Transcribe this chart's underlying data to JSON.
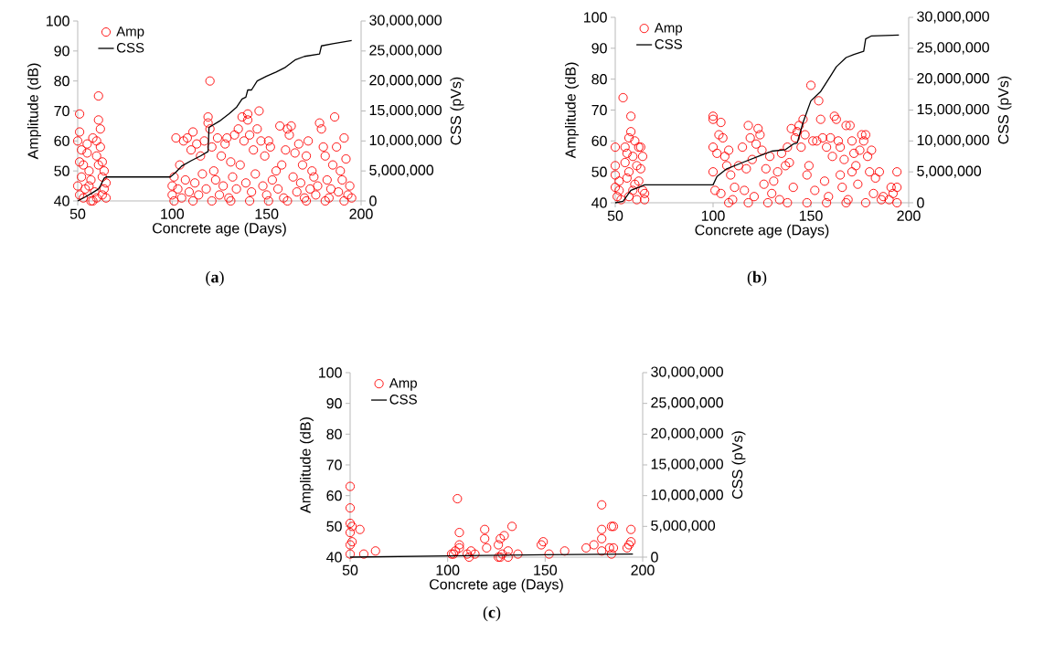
{
  "chart_data": [
    {
      "type": "scatter",
      "xlabel": "Concrete age (Days)",
      "ylabel": "Amplitude  (dB)",
      "y2label": "CSS (pVs)",
      "legend": "top left",
      "annotations": [
        "(**a**)"
      ],
      "xlim": [
        50,
        200
      ],
      "xticks": [
        50,
        100,
        150,
        200
      ],
      "ylim": [
        40,
        100
      ],
      "yticks": [
        40,
        50,
        60,
        70,
        80,
        90,
        100
      ],
      "y2lim": [
        0,
        30000000
      ],
      "y2ticks": [
        0,
        {
          "value": 5000000,
          "label": "5,000,000"
        },
        {
          "value": 10000000,
          "label": "10,000,000"
        },
        {
          "value": 15000000,
          "label": "15,000,000"
        },
        {
          "value": 20000000,
          "label": "20,000,000"
        },
        {
          "value": 25000000,
          "label": "25,000,000"
        },
        {
          "value": 30000000,
          "label": "30,000,000"
        }
      ],
      "series": [
        {
          "name": "Amp",
          "color": "#ff0000",
          "marker": "circle",
          "x": [
            51,
            51,
            50,
            51,
            52,
            53,
            50,
            51,
            52,
            54,
            55,
            55,
            56,
            57,
            58,
            59,
            60,
            60,
            61,
            61,
            62,
            62,
            63,
            63,
            64,
            64,
            65,
            53,
            57,
            60,
            63,
            65,
            58,
            56,
            61,
            100,
            100,
            101,
            102,
            104,
            106,
            108,
            110,
            111,
            113,
            115,
            117,
            119,
            119,
            120,
            120,
            121,
            122,
            124,
            126,
            128,
            129,
            131,
            133,
            135,
            137,
            138,
            140,
            140,
            141,
            143,
            145,
            146,
            147,
            149,
            151,
            152,
            155,
            157,
            160,
            161,
            162,
            163,
            165,
            167,
            169,
            171,
            172,
            175,
            178,
            179,
            180,
            181,
            185,
            186,
            187,
            189,
            191,
            192,
            194,
            195,
            103,
            105,
            107,
            109,
            112,
            114,
            116,
            118,
            123,
            125,
            127,
            130,
            132,
            134,
            136,
            139,
            142,
            144,
            148,
            150,
            153,
            156,
            158,
            159,
            164,
            166,
            168,
            170,
            173,
            174,
            176,
            177,
            182,
            183,
            184,
            188,
            190,
            193,
            111,
            121,
            131,
            141,
            151,
            161,
            171,
            181,
            191,
            101
          ],
          "values": [
            69,
            63,
            60,
            53,
            57,
            52,
            45,
            42,
            48,
            44,
            59,
            56,
            50,
            47,
            61,
            43,
            60,
            55,
            75,
            67,
            64,
            58,
            53,
            48,
            50,
            44,
            46,
            41,
            40,
            41,
            42,
            41,
            40,
            45,
            52,
            42,
            45,
            48,
            61,
            52,
            60,
            61,
            57,
            63,
            59,
            55,
            60,
            68,
            66,
            80,
            64,
            58,
            50,
            61,
            55,
            59,
            61,
            53,
            62,
            64,
            68,
            60,
            69,
            67,
            62,
            57,
            64,
            70,
            60,
            55,
            60,
            58,
            50,
            65,
            57,
            64,
            62,
            65,
            56,
            59,
            52,
            55,
            60,
            48,
            66,
            64,
            58,
            55,
            52,
            68,
            58,
            50,
            61,
            54,
            45,
            41,
            44,
            41,
            47,
            43,
            46,
            42,
            49,
            44,
            47,
            42,
            45,
            41,
            48,
            44,
            52,
            46,
            43,
            49,
            45,
            42,
            47,
            44,
            52,
            41,
            48,
            43,
            46,
            41,
            44,
            50,
            42,
            45,
            47,
            41,
            44,
            43,
            47,
            42,
            40,
            40,
            40,
            40,
            40,
            40,
            40,
            40,
            40,
            40
          ]
        },
        {
          "name": "CSS",
          "type": "line",
          "axis": "y2",
          "color": "#000000",
          "marker": "none",
          "x": [
            50,
            53,
            57,
            61,
            62,
            64,
            65,
            99,
            102,
            105,
            110,
            115,
            119,
            119.5,
            125,
            130,
            134,
            137,
            139,
            140,
            142,
            145,
            150,
            155,
            160,
            165,
            170,
            178,
            179,
            185,
            195
          ],
          "values": [
            0,
            500000,
            1200000,
            2000000,
            2500000,
            3800000,
            4000000,
            4000000,
            4800000,
            5800000,
            6700000,
            7500000,
            8250000,
            12250000,
            13300000,
            14500000,
            15600000,
            17000000,
            17300000,
            18500000,
            18500000,
            20000000,
            20800000,
            21500000,
            22300000,
            23500000,
            24100000,
            24500000,
            25850000,
            26200000,
            26750000
          ]
        }
      ]
    },
    {
      "type": "scatter",
      "xlabel": "Concrete age (Days)",
      "ylabel": "Amplitude  (dB)",
      "y2label": "CSS (pVs)",
      "legend": "top left",
      "annotations": [
        "(**b**)"
      ],
      "xlim": [
        50,
        200
      ],
      "xticks": [
        50,
        100,
        150,
        200
      ],
      "ylim": [
        40,
        100
      ],
      "yticks": [
        40,
        50,
        60,
        70,
        80,
        90,
        100
      ],
      "y2lim": [
        0,
        30000000
      ],
      "y2ticks": [
        0,
        {
          "value": 5000000,
          "label": "5,000,000"
        },
        {
          "value": 10000000,
          "label": "10,000,000"
        },
        {
          "value": 15000000,
          "label": "15,000,000"
        },
        {
          "value": 20000000,
          "label": "20,000,000"
        },
        {
          "value": 25000000,
          "label": "25,000,000"
        },
        {
          "value": 30000000,
          "label": "30,000,000"
        }
      ],
      "series": [
        {
          "name": "Amp",
          "color": "#ff0000",
          "marker": "circle",
          "x": [
            50,
            50,
            50,
            50,
            51,
            52,
            54,
            55,
            55,
            56,
            56,
            57,
            57,
            58,
            58,
            59,
            60,
            60,
            61,
            62,
            62,
            63,
            63,
            64,
            64,
            65,
            53,
            57,
            61,
            65,
            59,
            52,
            100,
            100,
            100,
            100,
            101,
            102,
            103,
            104,
            105,
            106,
            107,
            108,
            109,
            111,
            113,
            115,
            117,
            118,
            119,
            120,
            122,
            123,
            124,
            125,
            127,
            129,
            131,
            133,
            135,
            137,
            138,
            139,
            140,
            142,
            143,
            144,
            145,
            146,
            147,
            150,
            151,
            153,
            154,
            155,
            156,
            158,
            160,
            161,
            162,
            163,
            164,
            165,
            167,
            168,
            170,
            171,
            172,
            173,
            175,
            176,
            177,
            178,
            179,
            180,
            181,
            183,
            185,
            187,
            190,
            191,
            192,
            194,
            194,
            194,
            104,
            110,
            116,
            121,
            126,
            130,
            134,
            141,
            148,
            152,
            157,
            159,
            166,
            169,
            174,
            182,
            186,
            108,
            118,
            128,
            138,
            148,
            158,
            168,
            178,
            149,
            165,
            171
          ],
          "values": [
            58,
            52,
            49,
            45,
            42,
            44,
            74,
            58,
            53,
            48,
            56,
            61,
            50,
            68,
            63,
            55,
            46,
            60,
            52,
            58,
            47,
            58,
            51,
            44,
            55,
            43,
            41,
            42,
            41,
            41,
            44,
            47,
            68,
            67,
            58,
            50,
            44,
            56,
            62,
            66,
            61,
            55,
            52,
            57,
            49,
            45,
            52,
            58,
            51,
            65,
            61,
            54,
            59,
            64,
            62,
            57,
            51,
            55,
            47,
            50,
            56,
            52,
            58,
            53,
            64,
            61,
            63,
            65,
            58,
            67,
            62,
            78,
            60,
            60,
            73,
            67,
            61,
            58,
            61,
            55,
            68,
            67,
            60,
            58,
            54,
            65,
            65,
            60,
            56,
            52,
            57,
            62,
            60,
            62,
            55,
            50,
            57,
            48,
            50,
            42,
            41,
            45,
            43,
            50,
            45,
            40,
            43,
            41,
            44,
            42,
            46,
            43,
            41,
            45,
            49,
            44,
            47,
            42,
            45,
            41,
            46,
            43,
            41,
            40,
            40,
            40,
            40,
            40,
            40,
            40,
            40,
            52,
            49,
            50
          ]
        },
        {
          "name": "CSS",
          "type": "line",
          "axis": "y2",
          "color": "#000000",
          "marker": "none",
          "x": [
            50,
            54,
            58,
            62,
            65,
            100,
            102,
            107,
            115,
            125,
            130,
            137,
            141,
            143,
            146,
            150,
            155,
            160,
            163,
            168,
            172,
            177,
            178,
            181,
            195
          ],
          "values": [
            0,
            250000,
            2000000,
            2500000,
            2900000,
            2900000,
            4250000,
            5500000,
            6500000,
            7750000,
            8350000,
            8600000,
            9500000,
            9650000,
            13000000,
            16500000,
            18000000,
            20500000,
            22000000,
            23500000,
            24000000,
            24500000,
            26500000,
            27000000,
            27150000
          ]
        }
      ]
    },
    {
      "type": "scatter",
      "xlabel": "Concrete age (Days)",
      "ylabel": "Amplitude (dB)",
      "y2label": "CSS (pVs)",
      "legend": "top left",
      "annotations": [
        "(**c**)"
      ],
      "xlim": [
        50,
        200
      ],
      "xticks": [
        50,
        100,
        150,
        200
      ],
      "ylim": [
        40,
        100
      ],
      "yticks": [
        40,
        50,
        60,
        70,
        80,
        90,
        100
      ],
      "y2lim": [
        0,
        30000000
      ],
      "y2ticks": [
        0,
        {
          "value": 5000000,
          "label": "5,000,000"
        },
        {
          "value": 10000000,
          "label": "10,000,000"
        },
        {
          "value": 15000000,
          "label": "15,000,000"
        },
        {
          "value": 20000000,
          "label": "20,000,000"
        },
        {
          "value": 25000000,
          "label": "25,000,000"
        },
        {
          "value": 30000000,
          "label": "30,000,000"
        }
      ],
      "series": [
        {
          "name": "Amp",
          "color": "#ff0000",
          "marker": "circle",
          "x": [
            50,
            50,
            50,
            51,
            50,
            50,
            51,
            50,
            55,
            57,
            63,
            102,
            103,
            104,
            105,
            106,
            106,
            106,
            110,
            111,
            112,
            114,
            119,
            119,
            120,
            126,
            126,
            127,
            127,
            128,
            129,
            131,
            131,
            133,
            136,
            148,
            149,
            152,
            160,
            171,
            175,
            179,
            179,
            179,
            179,
            183,
            184,
            185,
            184,
            185,
            192,
            193,
            194,
            194
          ],
          "values": [
            63,
            56,
            51,
            50,
            48,
            44,
            45,
            41,
            49,
            41,
            42,
            41,
            41,
            42,
            59,
            48,
            44,
            43,
            41,
            40,
            42,
            41,
            49,
            46,
            43,
            44,
            40,
            40,
            46,
            41,
            47,
            42,
            40,
            50,
            41,
            44,
            45,
            41,
            42,
            43,
            44,
            57,
            49,
            46,
            42,
            43,
            50,
            50,
            41,
            43,
            43,
            44,
            45,
            49
          ]
        },
        {
          "name": "CSS",
          "type": "line",
          "axis": "y2",
          "color": "#000000",
          "marker": "none",
          "x": [
            50,
            100,
            150,
            195
          ],
          "values": [
            0,
            200000,
            400000,
            500000
          ]
        }
      ]
    }
  ]
}
